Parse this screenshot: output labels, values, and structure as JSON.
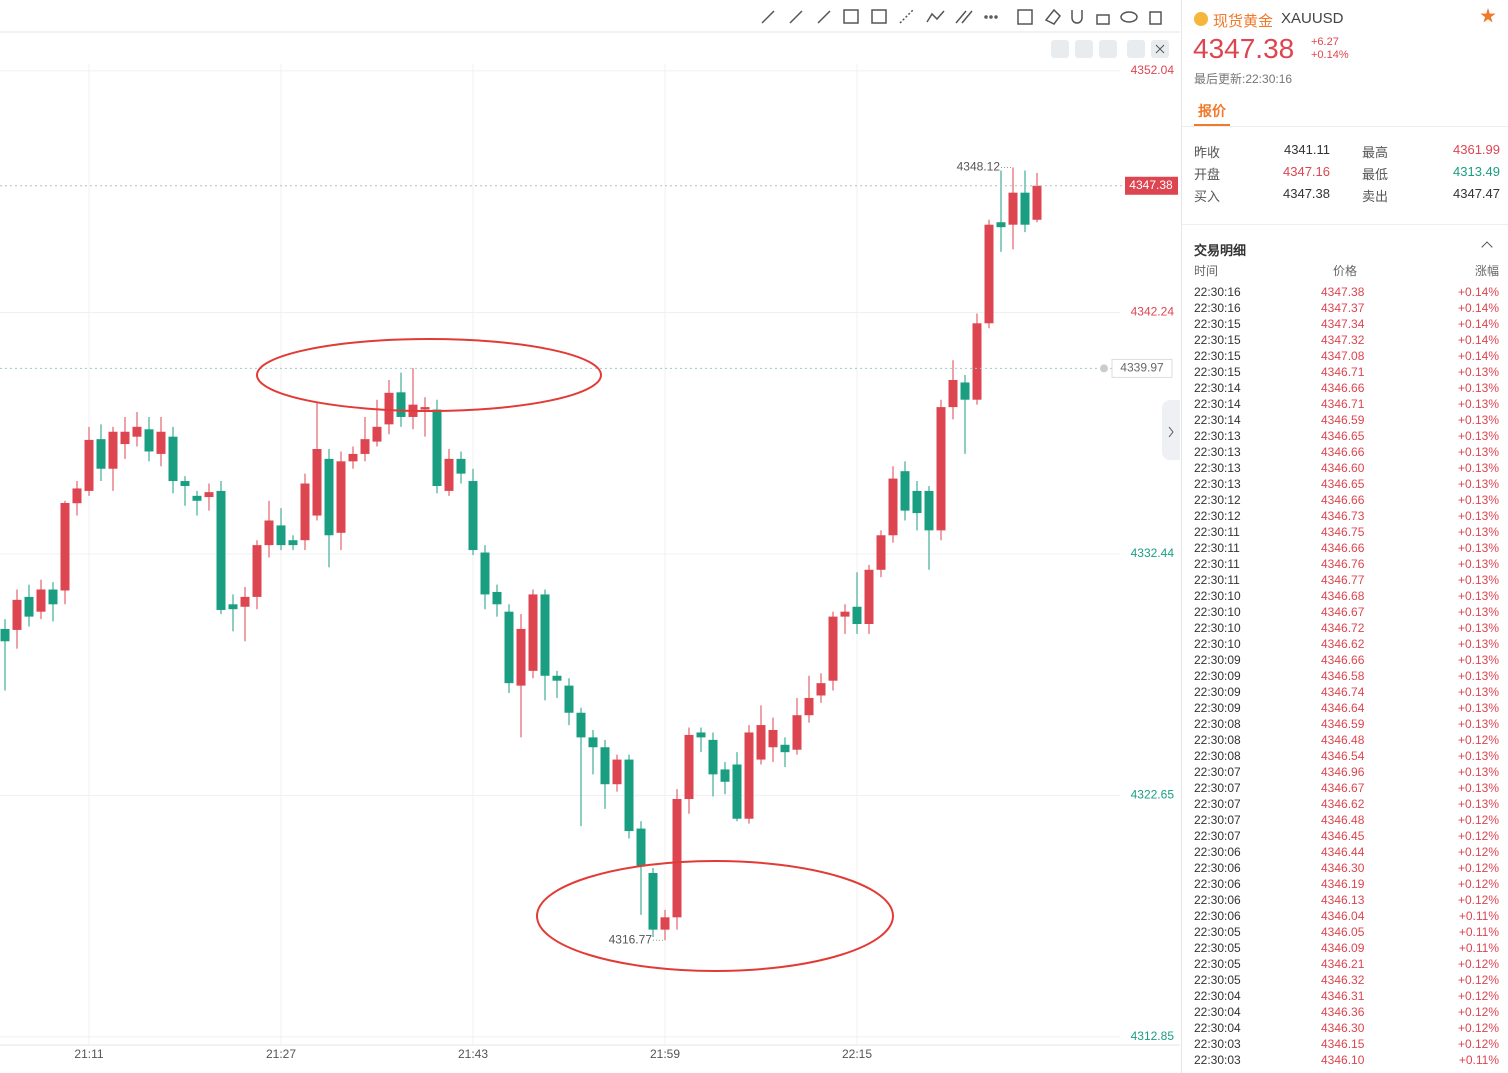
{
  "chart_data": {
    "type": "candlestick",
    "categories": [
      null,
      null,
      null,
      null,
      null,
      null,
      null,
      "21:11",
      null,
      null,
      null,
      null,
      null,
      null,
      null,
      null,
      null,
      null,
      null,
      null,
      null,
      null,
      null,
      "21:27",
      null,
      null,
      null,
      null,
      null,
      null,
      null,
      null,
      null,
      null,
      null,
      null,
      null,
      null,
      null,
      "21:43",
      null,
      null,
      null,
      null,
      null,
      null,
      null,
      null,
      null,
      null,
      null,
      null,
      null,
      null,
      null,
      "21:59",
      null,
      null,
      null,
      null,
      null,
      null,
      null,
      null,
      null,
      null,
      null,
      null,
      null,
      null,
      null,
      "22:15",
      null,
      null,
      null,
      null,
      null,
      null,
      null,
      null,
      null,
      null,
      null,
      null,
      null,
      null,
      null
    ],
    "open": [
      4329.4,
      4329.36,
      4330.7,
      4330.1,
      4331.0,
      4330.96,
      4334.5,
      4335.0,
      4337.1,
      4335.9,
      4336.9,
      4337.2,
      4337.5,
      4336.5,
      4337.2,
      4335.4,
      4334.8,
      4334.75,
      4335.0,
      4330.4,
      4330.3,
      4330.7,
      4332.8,
      4333.6,
      4333.0,
      4333.0,
      4334.0,
      4336.3,
      4333.3,
      4336.2,
      4336.5,
      4337.0,
      4337.7,
      4339.0,
      4338.0,
      4338.3,
      4338.3,
      4335.0,
      4336.3,
      4335.4,
      4332.5,
      4330.9,
      4330.1,
      4327.1,
      4327.7,
      4330.8,
      4327.5,
      4327.1,
      4326.0,
      4325.0,
      4324.6,
      4323.1,
      4324.1,
      4321.3,
      4319.5,
      4317.2,
      4317.7,
      4322.5,
      4325.2,
      4324.9,
      4323.7,
      4323.9,
      4321.7,
      4324.1,
      4324.6,
      4324.7,
      4324.5,
      4325.9,
      4326.7,
      4327.3,
      4329.9,
      4330.3,
      4329.6,
      4331.8,
      4333.2,
      4335.8,
      4335.0,
      4335.0,
      4333.4,
      4338.4,
      4339.4,
      4338.7,
      4341.8,
      4345.9,
      4345.8,
      4347.1,
      4346.0
    ],
    "high": [
      4329.8,
      4331.0,
      4331.2,
      4331.4,
      4331.3,
      4334.6,
      4335.4,
      4337.6,
      4337.7,
      4337.6,
      4338.0,
      4338.2,
      4338.0,
      4338.0,
      4337.6,
      4335.6,
      4335.0,
      4335.3,
      4335.4,
      4330.8,
      4331.1,
      4333.0,
      4334.6,
      4334.3,
      4333.2,
      4335.7,
      4338.6,
      4336.7,
      4336.6,
      4336.8,
      4338.0,
      4338.7,
      4339.5,
      4339.8,
      4339.98,
      4338.8,
      4338.7,
      4336.7,
      4336.6,
      4335.9,
      4332.8,
      4331.2,
      4330.4,
      4330.0,
      4331.0,
      4331.0,
      4327.7,
      4327.4,
      4326.2,
      4325.3,
      4324.9,
      4324.3,
      4324.3,
      4321.6,
      4319.7,
      4318.0,
      4322.9,
      4325.4,
      4325.4,
      4325.2,
      4324.0,
      4324.4,
      4325.5,
      4326.3,
      4325.8,
      4325.0,
      4326.6,
      4327.5,
      4327.6,
      4330.1,
      4330.4,
      4331.7,
      4332.0,
      4333.4,
      4336.0,
      4336.2,
      4335.4,
      4335.2,
      4338.7,
      4340.3,
      4339.7,
      4342.2,
      4346.0,
      4348.0,
      4348.12,
      4348.0,
      4347.9
    ],
    "low": [
      4326.9,
      4328.6,
      4329.5,
      4329.8,
      4329.7,
      4330.4,
      4334.0,
      4334.8,
      4335.4,
      4335.0,
      4336.3,
      4336.8,
      4336.2,
      4336.0,
      4334.9,
      4334.4,
      4334.0,
      4334.2,
      4330.0,
      4329.3,
      4328.9,
      4330.2,
      4332.3,
      4332.6,
      4332.6,
      4332.6,
      4333.8,
      4331.9,
      4332.6,
      4335.9,
      4336.2,
      4336.8,
      4337.3,
      4337.6,
      4337.5,
      4337.2,
      4334.9,
      4334.8,
      4335.3,
      4332.4,
      4330.2,
      4329.9,
      4326.8,
      4325.0,
      4327.4,
      4326.5,
      4326.6,
      4325.5,
      4321.4,
      4323.5,
      4322.1,
      4322.8,
      4320.9,
      4317.8,
      4316.9,
      4316.77,
      4317.2,
      4321.9,
      4324.4,
      4322.6,
      4322.7,
      4321.6,
      4321.5,
      4323.9,
      4324.0,
      4323.8,
      4324.3,
      4325.6,
      4326.4,
      4326.9,
      4329.2,
      4329.2,
      4329.2,
      4331.5,
      4332.9,
      4333.8,
      4333.4,
      4331.8,
      4333.0,
      4337.9,
      4336.5,
      4338.5,
      4341.6,
      4344.7,
      4344.8,
      4345.5,
      4345.9
    ],
    "close": [
      4328.9,
      4330.58,
      4329.9,
      4331.0,
      4330.4,
      4334.51,
      4335.1,
      4337.07,
      4335.9,
      4337.4,
      4337.4,
      4337.6,
      4336.6,
      4337.4,
      4335.4,
      4335.2,
      4334.6,
      4334.95,
      4330.17,
      4330.2,
      4330.7,
      4332.8,
      4333.8,
      4332.8,
      4332.8,
      4335.3,
      4336.7,
      4333.2,
      4336.2,
      4336.5,
      4337.1,
      4337.6,
      4338.98,
      4338.0,
      4338.5,
      4338.4,
      4335.2,
      4336.3,
      4335.7,
      4332.6,
      4330.8,
      4330.4,
      4327.2,
      4329.4,
      4330.8,
      4327.5,
      4327.3,
      4326.0,
      4325.0,
      4324.6,
      4323.1,
      4324.1,
      4321.2,
      4319.8,
      4317.2,
      4317.7,
      4322.5,
      4325.1,
      4325.0,
      4323.5,
      4323.2,
      4321.7,
      4325.2,
      4325.5,
      4325.3,
      4324.4,
      4325.9,
      4326.6,
      4327.2,
      4329.9,
      4330.1,
      4329.6,
      4331.8,
      4333.2,
      4335.5,
      4334.2,
      4334.1,
      4333.4,
      4338.4,
      4339.5,
      4338.7,
      4341.8,
      4345.8,
      4345.7,
      4347.1,
      4345.8,
      4347.38
    ],
    "up_color": "#dd4550",
    "down_color": "#1a9e82",
    "ylim": [
      4312.52,
      4352.32
    ],
    "yticks": [
      4352.04,
      4342.24,
      4332.44,
      4322.65,
      4312.85
    ],
    "grid": true,
    "last_price": 4347.38,
    "crosshair_price": 4339.97,
    "max_label": "4348.12",
    "min_label": "4316.77"
  },
  "quote_panel": {
    "name": "现货黄金",
    "symbol": "XAUUSD",
    "price": "4347.38",
    "change": "+6.27",
    "change_pct": "+0.14%",
    "updated": "最后更新:22:30:16",
    "tab": "报价",
    "stats": [
      {
        "label": "昨收",
        "value": "4341.11",
        "color": "#333333"
      },
      {
        "label": "最高",
        "value": "4361.99",
        "color": "#dd4550"
      },
      {
        "label": "开盘",
        "value": "4347.16",
        "color": "#dd4550"
      },
      {
        "label": "最低",
        "value": "4313.49",
        "color": "#1a9e82"
      },
      {
        "label": "买入",
        "value": "4347.38",
        "color": "#333333"
      },
      {
        "label": "卖出",
        "value": "4347.47",
        "color": "#333333"
      }
    ],
    "trades_title": "交易明细",
    "columns": [
      "时间",
      "价格",
      "涨幅"
    ],
    "trades": [
      [
        "22:30:16",
        "4347.38",
        "+0.14%"
      ],
      [
        "22:30:16",
        "4347.37",
        "+0.14%"
      ],
      [
        "22:30:15",
        "4347.34",
        "+0.14%"
      ],
      [
        "22:30:15",
        "4347.32",
        "+0.14%"
      ],
      [
        "22:30:15",
        "4347.08",
        "+0.14%"
      ],
      [
        "22:30:15",
        "4346.71",
        "+0.13%"
      ],
      [
        "22:30:14",
        "4346.66",
        "+0.13%"
      ],
      [
        "22:30:14",
        "4346.71",
        "+0.13%"
      ],
      [
        "22:30:14",
        "4346.59",
        "+0.13%"
      ],
      [
        "22:30:13",
        "4346.65",
        "+0.13%"
      ],
      [
        "22:30:13",
        "4346.66",
        "+0.13%"
      ],
      [
        "22:30:13",
        "4346.60",
        "+0.13%"
      ],
      [
        "22:30:13",
        "4346.65",
        "+0.13%"
      ],
      [
        "22:30:12",
        "4346.66",
        "+0.13%"
      ],
      [
        "22:30:12",
        "4346.73",
        "+0.13%"
      ],
      [
        "22:30:11",
        "4346.75",
        "+0.13%"
      ],
      [
        "22:30:11",
        "4346.66",
        "+0.13%"
      ],
      [
        "22:30:11",
        "4346.76",
        "+0.13%"
      ],
      [
        "22:30:11",
        "4346.77",
        "+0.13%"
      ],
      [
        "22:30:10",
        "4346.68",
        "+0.13%"
      ],
      [
        "22:30:10",
        "4346.67",
        "+0.13%"
      ],
      [
        "22:30:10",
        "4346.72",
        "+0.13%"
      ],
      [
        "22:30:10",
        "4346.62",
        "+0.13%"
      ],
      [
        "22:30:09",
        "4346.66",
        "+0.13%"
      ],
      [
        "22:30:09",
        "4346.58",
        "+0.13%"
      ],
      [
        "22:30:09",
        "4346.74",
        "+0.13%"
      ],
      [
        "22:30:09",
        "4346.64",
        "+0.13%"
      ],
      [
        "22:30:08",
        "4346.59",
        "+0.13%"
      ],
      [
        "22:30:08",
        "4346.48",
        "+0.12%"
      ],
      [
        "22:30:08",
        "4346.54",
        "+0.13%"
      ],
      [
        "22:30:07",
        "4346.96",
        "+0.13%"
      ],
      [
        "22:30:07",
        "4346.67",
        "+0.13%"
      ],
      [
        "22:30:07",
        "4346.62",
        "+0.13%"
      ],
      [
        "22:30:07",
        "4346.48",
        "+0.12%"
      ],
      [
        "22:30:07",
        "4346.45",
        "+0.12%"
      ],
      [
        "22:30:06",
        "4346.44",
        "+0.12%"
      ],
      [
        "22:30:06",
        "4346.30",
        "+0.12%"
      ],
      [
        "22:30:06",
        "4346.19",
        "+0.12%"
      ],
      [
        "22:30:06",
        "4346.13",
        "+0.12%"
      ],
      [
        "22:30:06",
        "4346.04",
        "+0.11%"
      ],
      [
        "22:30:05",
        "4346.05",
        "+0.11%"
      ],
      [
        "22:30:05",
        "4346.09",
        "+0.11%"
      ],
      [
        "22:30:05",
        "4346.21",
        "+0.12%"
      ],
      [
        "22:30:05",
        "4346.32",
        "+0.12%"
      ],
      [
        "22:30:04",
        "4346.31",
        "+0.12%"
      ],
      [
        "22:30:04",
        "4346.36",
        "+0.12%"
      ],
      [
        "22:30:04",
        "4346.30",
        "+0.12%"
      ],
      [
        "22:30:03",
        "4346.15",
        "+0.12%"
      ],
      [
        "22:30:03",
        "4346.10",
        "+0.11%"
      ]
    ]
  }
}
